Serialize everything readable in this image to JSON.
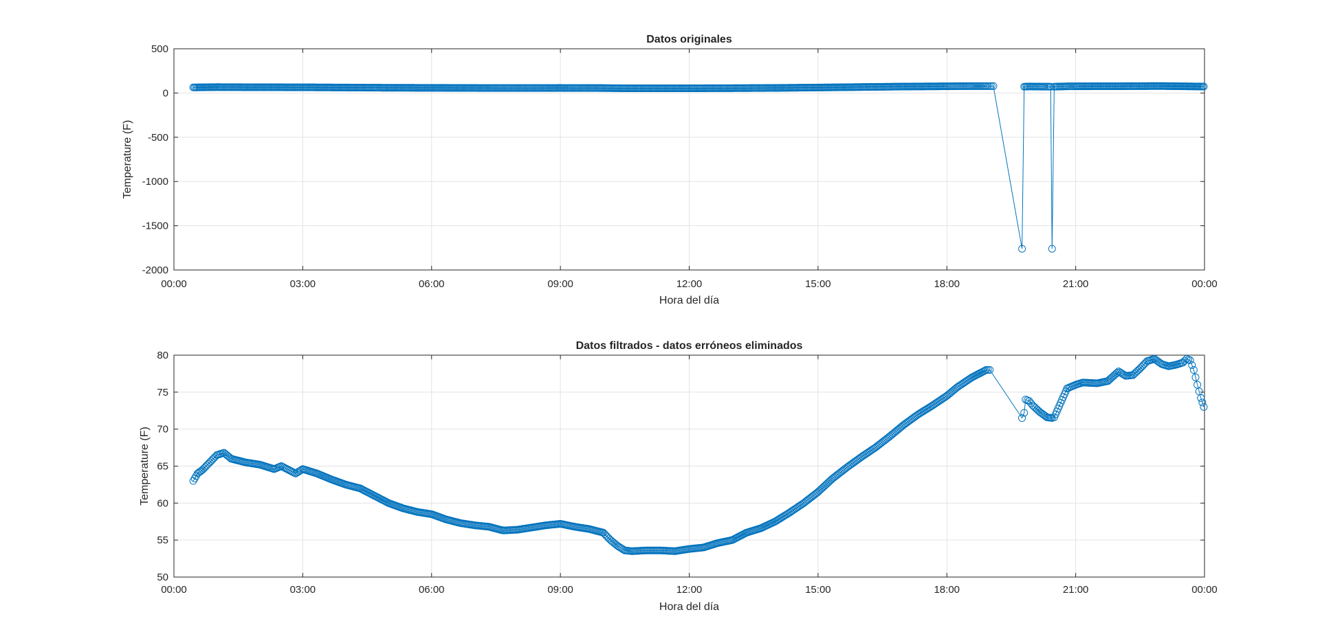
{
  "chart_data": [
    {
      "type": "line",
      "title": "Datos originales",
      "xlabel": "Hora del día",
      "ylabel": "Temperature (F)",
      "xlim": [
        "00:00",
        "24:00"
      ],
      "ylim": [
        -2000,
        500
      ],
      "grid": true,
      "color": "#0072BD",
      "x_ticks": [
        "00:00",
        "03:00",
        "06:00",
        "09:00",
        "12:00",
        "15:00",
        "18:00",
        "21:00",
        "00:00"
      ],
      "y_ticks": [
        "500",
        "0",
        "-500",
        "-1000",
        "-1500",
        "-2000"
      ],
      "series": [
        {
          "marker": "circle",
          "x": [
            "00:27",
            "01:00",
            "02:00",
            "03:00",
            "04:00",
            "05:00",
            "06:00",
            "07:00",
            "08:00",
            "09:00",
            "10:00",
            "10:30",
            "11:00",
            "11:30",
            "12:00",
            "13:00",
            "14:00",
            "15:00",
            "16:00",
            "17:00",
            "18:00",
            "18:15",
            "18:35",
            "18:45",
            "18:55",
            "19:00",
            "19:05",
            "19:45",
            "19:48",
            "19:55",
            "20:15",
            "20:25",
            "20:27",
            "20:30",
            "20:48",
            "21:00",
            "22:00",
            "23:00",
            "23:59"
          ],
          "y": [
            63,
            66.8,
            65,
            64.5,
            62,
            59.5,
            58.5,
            57,
            56.5,
            57,
            56,
            53.5,
            53.5,
            53.5,
            53.5,
            55,
            57.5,
            62,
            67.5,
            73,
            76,
            77.5,
            78,
            78,
            78,
            78,
            78,
            -1760,
            71.5,
            74,
            72,
            71.5,
            -1760,
            71.5,
            75.5,
            76,
            77,
            79,
            73
          ]
        }
      ]
    },
    {
      "type": "line",
      "title": "Datos filtrados - datos erróneos eliminados",
      "xlabel": "Hora del día",
      "ylabel": "Temperature (F)",
      "xlim": [
        "00:00",
        "24:00"
      ],
      "ylim": [
        50,
        80
      ],
      "grid": true,
      "color": "#0072BD",
      "x_ticks": [
        "00:00",
        "03:00",
        "06:00",
        "09:00",
        "12:00",
        "15:00",
        "18:00",
        "21:00",
        "00:00"
      ],
      "y_ticks": [
        "80",
        "75",
        "70",
        "65",
        "60",
        "55",
        "50"
      ],
      "series": [
        {
          "marker": "circle",
          "x": [
            "00:27",
            "00:33",
            "00:40",
            "00:50",
            "01:00",
            "01:10",
            "01:20",
            "01:40",
            "02:00",
            "02:20",
            "02:30",
            "02:40",
            "02:50",
            "03:00",
            "03:20",
            "03:40",
            "04:00",
            "04:20",
            "04:40",
            "05:00",
            "05:20",
            "05:40",
            "06:00",
            "06:20",
            "06:40",
            "07:00",
            "07:20",
            "07:40",
            "08:00",
            "08:20",
            "08:40",
            "09:00",
            "09:20",
            "09:40",
            "10:00",
            "10:10",
            "10:20",
            "10:30",
            "10:40",
            "11:00",
            "11:20",
            "11:40",
            "12:00",
            "12:20",
            "12:40",
            "13:00",
            "13:20",
            "13:40",
            "14:00",
            "14:20",
            "14:40",
            "15:00",
            "15:20",
            "15:40",
            "16:00",
            "16:20",
            "16:40",
            "17:00",
            "17:20",
            "17:40",
            "18:00",
            "18:15",
            "18:35",
            "18:55",
            "19:00",
            "19:45",
            "19:48",
            "19:50",
            "19:55",
            "20:00",
            "20:10",
            "20:20",
            "20:27",
            "20:30",
            "20:48",
            "21:00",
            "21:10",
            "21:30",
            "21:45",
            "22:00",
            "22:10",
            "22:20",
            "22:30",
            "22:40",
            "22:50",
            "23:00",
            "23:10",
            "23:20",
            "23:30",
            "23:35",
            "23:40",
            "23:45",
            "23:50",
            "23:55",
            "23:59"
          ],
          "y": [
            63,
            64,
            64.5,
            65.5,
            66.5,
            66.8,
            66,
            65.5,
            65.2,
            64.6,
            65,
            64.5,
            64,
            64.6,
            64,
            63.2,
            62.5,
            62,
            61,
            60,
            59.3,
            58.8,
            58.5,
            57.8,
            57.3,
            57,
            56.8,
            56.3,
            56.4,
            56.7,
            57,
            57.2,
            56.8,
            56.5,
            56,
            55,
            54.2,
            53.6,
            53.5,
            53.6,
            53.6,
            53.5,
            53.8,
            54,
            54.6,
            55,
            56,
            56.6,
            57.5,
            58.7,
            60,
            61.5,
            63.3,
            64.8,
            66.2,
            67.5,
            69,
            70.6,
            72,
            73.2,
            74.5,
            75.7,
            77,
            78,
            78,
            71.5,
            72.2,
            74,
            73.8,
            73.2,
            72.3,
            71.6,
            71.5,
            71.6,
            75.5,
            76,
            76.3,
            76.2,
            76.5,
            77.8,
            77.2,
            77.3,
            78.2,
            79.2,
            79.5,
            78.8,
            78.5,
            78.7,
            79,
            79.5,
            79.3,
            78,
            76,
            74.2,
            73
          ]
        }
      ]
    }
  ]
}
